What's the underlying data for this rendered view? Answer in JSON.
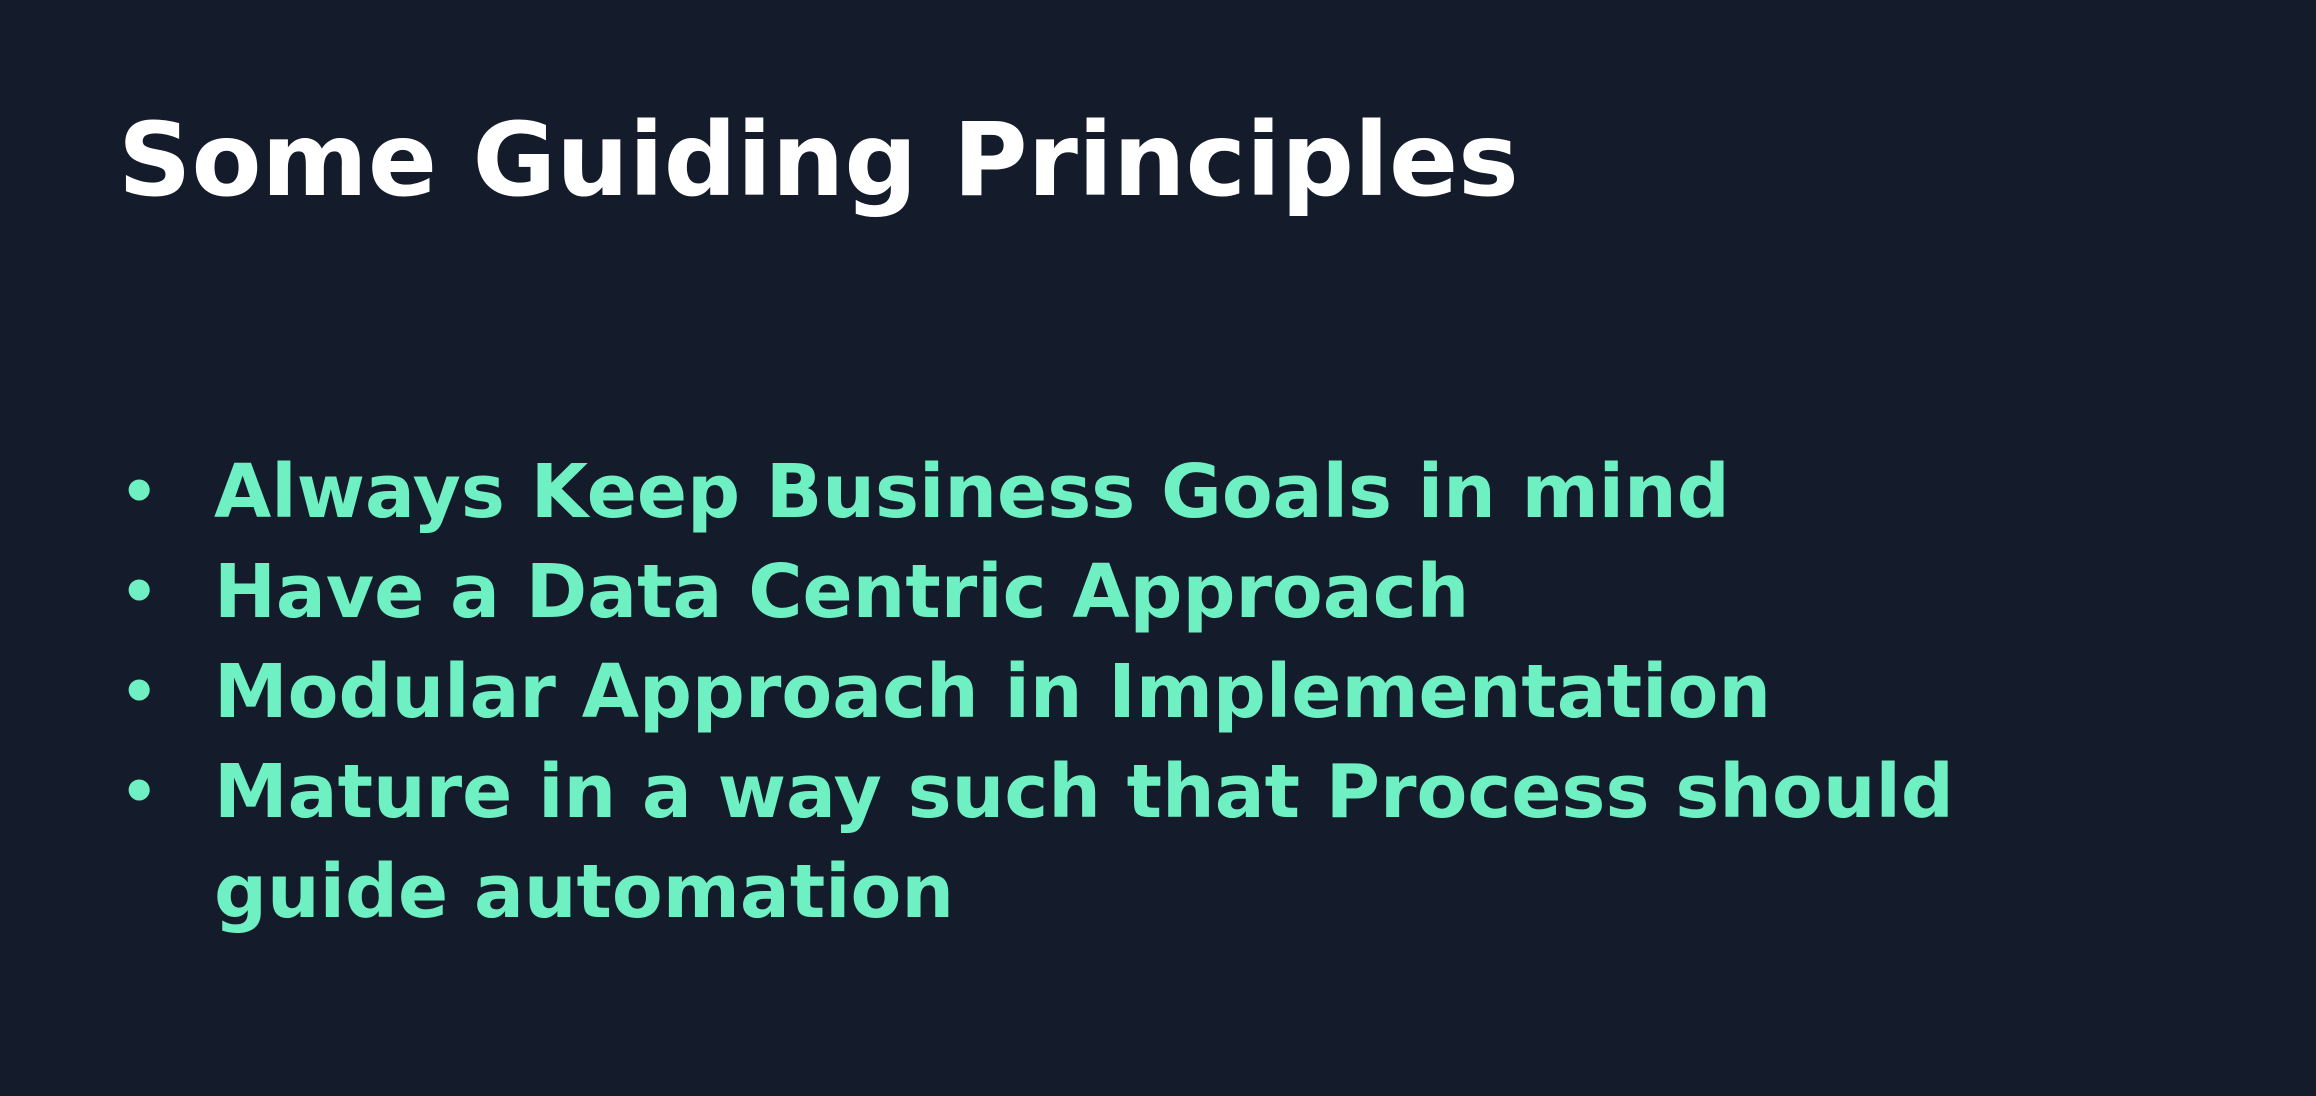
{
  "slide": {
    "title": "Some Guiding Principles",
    "bullets": [
      "Always Keep Business Goals in mind",
      "Have a Data Centric Approach",
      "Modular Approach in Implementation",
      "Mature in a way such that Process should guide automation"
    ]
  },
  "colors": {
    "background": "#141c2b",
    "title": "#ffffff",
    "bullet_text": "#6ff0c2"
  },
  "icons": {
    "bullet": "bullet-dot-icon"
  }
}
